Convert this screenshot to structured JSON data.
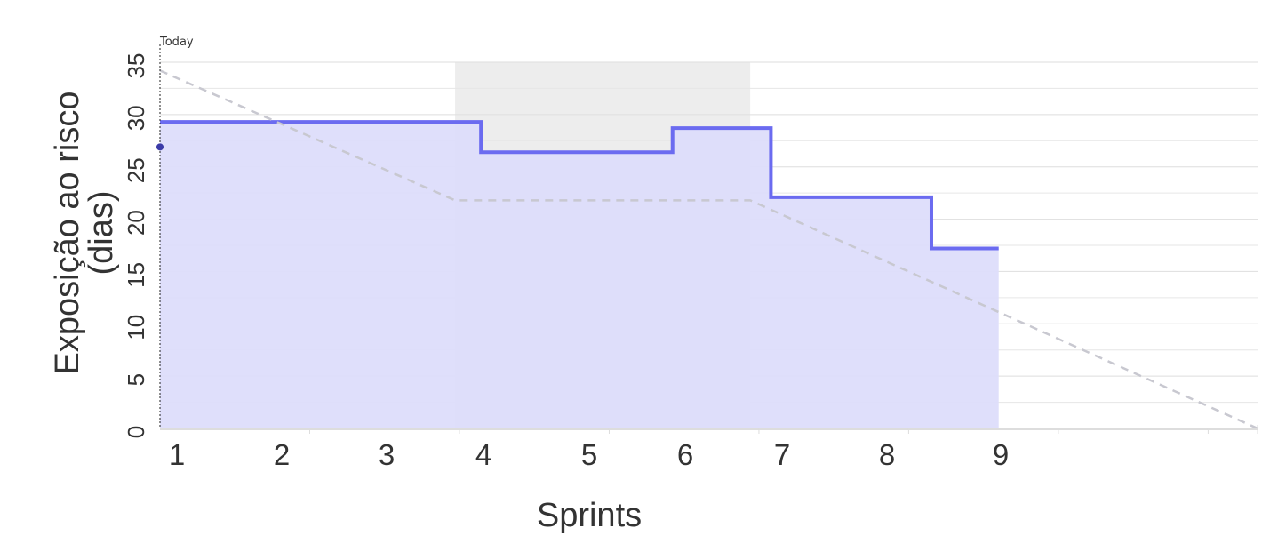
{
  "chart_data": {
    "type": "area",
    "x_ticks": [
      "1",
      "2",
      "3",
      "4",
      "5",
      "6",
      "7",
      "8",
      "9"
    ],
    "y_ticks": [
      0,
      5,
      10,
      15,
      20,
      25,
      30,
      35
    ],
    "ylim": [
      0,
      35
    ],
    "xlabel": "Sprints",
    "ylabel_lines": [
      "Exposição ao risco",
      "(dias)"
    ],
    "today_label": "Today",
    "today_point": {
      "x": 0,
      "y": 26.9
    },
    "series": [
      {
        "style": "step",
        "color": "#6b6bf0",
        "fill": "#ddddfb",
        "points": [
          [
            0,
            29.3
          ],
          [
            3.1,
            29.3
          ],
          [
            3.1,
            26.4
          ],
          [
            4.95,
            26.4
          ],
          [
            4.95,
            28.7
          ],
          [
            5.9,
            28.7
          ],
          [
            5.9,
            22.1
          ],
          [
            7.45,
            22.1
          ],
          [
            7.45,
            17.2
          ],
          [
            8.1,
            17.2
          ]
        ]
      },
      {
        "style": "dashed",
        "color": "#c8c8d0",
        "points": [
          [
            0,
            34.2
          ],
          [
            2.85,
            21.8
          ],
          [
            5.7,
            21.8
          ],
          [
            10.6,
            0
          ]
        ]
      }
    ],
    "highlight_band": {
      "x_start": 2.85,
      "x_end": 5.7,
      "color": "#e8e8e8"
    },
    "grid": true,
    "grid_minor_step": 2.5,
    "colors": {
      "today_marker": "#3b3ba8",
      "grid": "#e6e6e6",
      "axis": "#dddddd"
    }
  }
}
